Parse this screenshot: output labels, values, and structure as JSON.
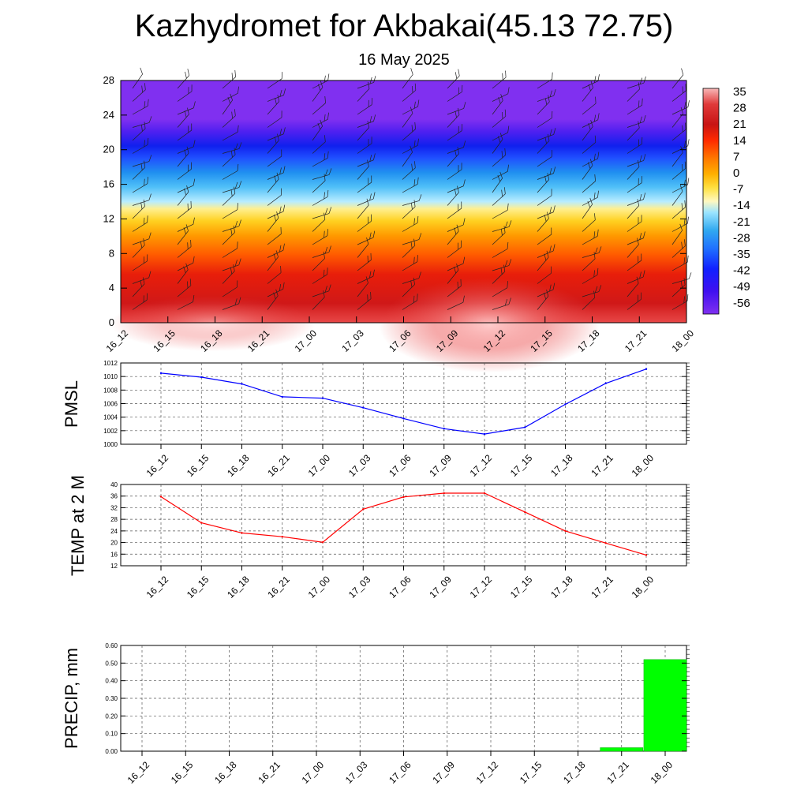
{
  "title": "Kazhydromet for Akbakai(45.13 72.75)",
  "subtitle": "16 May 2025",
  "chart_data": [
    {
      "type": "heatmap",
      "name": "cross-section",
      "x": [
        "16_12",
        "16_15",
        "16_18",
        "16_21",
        "17_00",
        "17_03",
        "17_06",
        "17_09",
        "17_12",
        "17_15",
        "17_18",
        "17_21",
        "18_00"
      ],
      "y_ticks": [
        0,
        4,
        8,
        12,
        16,
        20,
        24,
        28
      ],
      "ylim": [
        0,
        28
      ],
      "colorbar": {
        "labels": [
          "35",
          "28",
          "21",
          "14",
          "7",
          "0",
          "-7",
          "-14",
          "-21",
          "-28",
          "-35",
          "-42",
          "-49",
          "-56"
        ],
        "colors": [
          "#f8b0b0",
          "#e03030",
          "#c81414",
          "#ff2a00",
          "#ff7800",
          "#ffb000",
          "#ffe040",
          "#fff8c0",
          "#80d8ff",
          "#30a8f0",
          "#2060ff",
          "#1020ff",
          "#3000f0",
          "#8030f0"
        ]
      }
    },
    {
      "type": "line",
      "ylabel": "PMSL",
      "x": [
        "16_12",
        "16_15",
        "16_18",
        "16_21",
        "17_00",
        "17_03",
        "17_06",
        "17_09",
        "17_12",
        "17_15",
        "17_18",
        "17_21",
        "18_00"
      ],
      "values": [
        1010.5,
        1009.9,
        1008.9,
        1007.0,
        1006.8,
        1005.4,
        1003.8,
        1002.3,
        1001.5,
        1002.5,
        1005.9,
        1009.0,
        1011.1
      ],
      "ylim": [
        1000,
        1012
      ],
      "y_ticks": [
        "1000",
        "1002",
        "1004",
        "1006",
        "1008",
        "1010",
        "1012"
      ],
      "color": "#0000ff"
    },
    {
      "type": "line",
      "ylabel": "TEMP at 2 M",
      "x": [
        "16_12",
        "16_15",
        "16_18",
        "16_21",
        "17_00",
        "17_03",
        "17_06",
        "17_09",
        "17_12",
        "17_15",
        "17_18",
        "17_21",
        "18_00"
      ],
      "values": [
        35.8,
        26.8,
        23.3,
        22.0,
        20.1,
        31.5,
        35.7,
        37.0,
        37.0,
        30.5,
        24.0,
        19.8,
        15.7
      ],
      "ylim": [
        12,
        40
      ],
      "y_ticks": [
        "12",
        "16",
        "20",
        "24",
        "28",
        "32",
        "36",
        "40"
      ],
      "color": "#ff0000"
    },
    {
      "type": "bar",
      "ylabel": "PRECIP, mm",
      "x": [
        "16_12",
        "16_15",
        "16_18",
        "16_21",
        "17_00",
        "17_03",
        "17_06",
        "17_09",
        "17_12",
        "17_15",
        "17_18",
        "17_21",
        "18_00"
      ],
      "values": [
        0,
        0,
        0,
        0,
        0,
        0,
        0,
        0,
        0,
        0,
        0,
        0.02,
        0.52
      ],
      "ylim": [
        0,
        0.6
      ],
      "y_ticks": [
        "0.00",
        "0.10",
        "0.20",
        "0.30",
        "0.40",
        "0.50",
        "0.60"
      ],
      "color": "#00ff00"
    }
  ]
}
